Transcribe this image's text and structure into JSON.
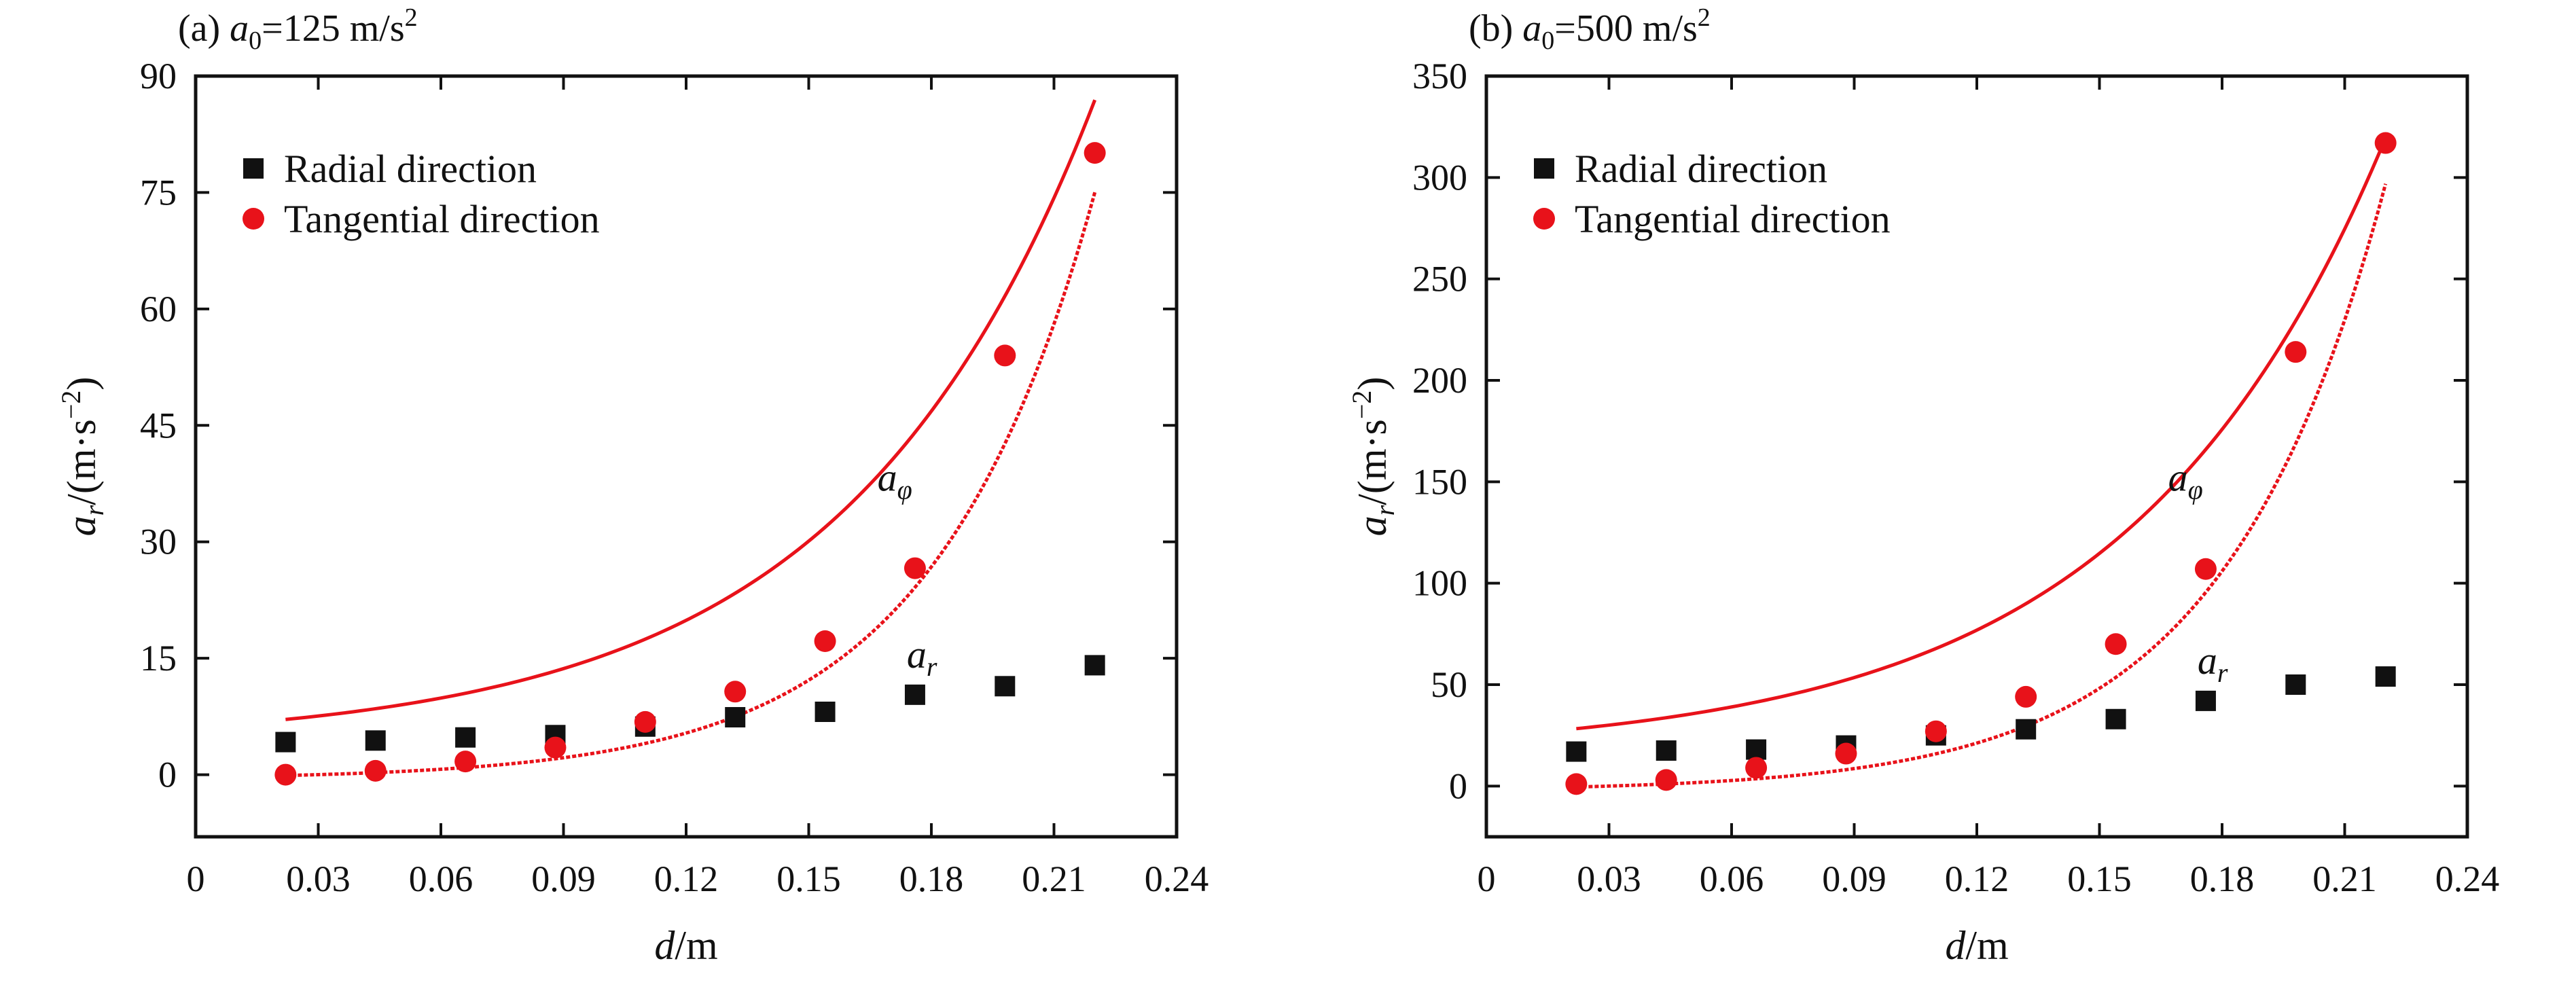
{
  "chart_data": [
    {
      "type": "scatter",
      "title": "(a)  a0=125 m/s2",
      "title_parts": {
        "prefix": "(a)",
        "var": "a",
        "sub": "0",
        "rest": "=125 m/s",
        "sup": "2"
      },
      "xlabel": "d/m",
      "xlabel_parts": {
        "var": "d",
        "rest": "/m"
      },
      "ylabel": "ar/(m·s−2)",
      "ylabel_parts": {
        "var": "a",
        "sub": "r",
        "unit_start": "/(m·s",
        "sup": "−2",
        "unit_end": ")"
      },
      "xlim": [
        0,
        0.24
      ],
      "ylim": [
        -8,
        90
      ],
      "xticks": [
        0,
        0.03,
        0.06,
        0.09,
        0.12,
        0.15,
        0.18,
        0.21,
        0.24
      ],
      "xtick_labels": [
        "0",
        "0.03",
        "0.06",
        "0.09",
        "0.12",
        "0.15",
        "0.18",
        "0.21",
        "0.24"
      ],
      "yticks": [
        0,
        15,
        30,
        45,
        60,
        75,
        90
      ],
      "ytick_labels": [
        "0",
        "15",
        "30",
        "45",
        "60",
        "75",
        "90"
      ],
      "x": [
        0.022,
        0.044,
        0.066,
        0.088,
        0.11,
        0.132,
        0.154,
        0.176,
        0.198,
        0.22
      ],
      "series": [
        {
          "name": "Radial direction",
          "marker": "square",
          "color": "#111111",
          "line_color": "#e8121a",
          "values": [
            4.2,
            4.4,
            4.8,
            5.1,
            6.2,
            7.4,
            8.1,
            10.3,
            11.4,
            14.1
          ],
          "fit": {
            "a": 3.95,
            "b": 2.2,
            "k": 16.5,
            "style": "solid"
          },
          "label": {
            "var": "a",
            "sub": "r"
          }
        },
        {
          "name": "Tangential direction",
          "marker": "circle",
          "color": "#e8121a",
          "line_color": "#e8121a",
          "values": [
            0.0,
            0.5,
            1.7,
            3.5,
            6.8,
            10.7,
            17.2,
            26.6,
            54.0,
            80.1
          ],
          "fit": {
            "a": -0.6,
            "b": 0.283,
            "k": 25.4,
            "style": "dashed"
          },
          "label": {
            "var": "a",
            "sub": "φ"
          }
        }
      ],
      "legend": "top-left",
      "grid": false
    },
    {
      "type": "scatter",
      "title": "(b)  a0=500 m/s2",
      "title_parts": {
        "prefix": "(b)",
        "var": "a",
        "sub": "0",
        "rest": "=500 m/s",
        "sup": "2"
      },
      "xlabel": "d/m",
      "xlabel_parts": {
        "var": "d",
        "rest": "/m"
      },
      "ylabel": "ar/(m·s−2)",
      "ylabel_parts": {
        "var": "a",
        "sub": "r",
        "unit_start": "/(m·s",
        "sup": "−2",
        "unit_end": ")"
      },
      "xlim": [
        0,
        0.24
      ],
      "ylim": [
        -25,
        350
      ],
      "xticks": [
        0,
        0.03,
        0.06,
        0.09,
        0.12,
        0.15,
        0.18,
        0.21,
        0.24
      ],
      "xtick_labels": [
        "0",
        "0.03",
        "0.06",
        "0.09",
        "0.12",
        "0.15",
        "0.18",
        "0.21",
        "0.24"
      ],
      "yticks": [
        0,
        50,
        100,
        150,
        200,
        250,
        300,
        350
      ],
      "ytick_labels": [
        "0",
        "50",
        "100",
        "150",
        "200",
        "250",
        "300",
        "350"
      ],
      "x": [
        0.022,
        0.044,
        0.066,
        0.088,
        0.11,
        0.132,
        0.154,
        0.176,
        0.198,
        0.22
      ],
      "series": [
        {
          "name": "Radial direction",
          "marker": "square",
          "color": "#111111",
          "line_color": "#e8121a",
          "values": [
            17,
            17.5,
            18,
            20,
            25,
            28,
            33,
            42,
            50,
            54
          ],
          "fit": {
            "a": 15.5,
            "b": 9.0,
            "k": 16.0,
            "style": "solid"
          },
          "label": {
            "var": "a",
            "sub": "r"
          }
        },
        {
          "name": "Tangential direction",
          "marker": "circle",
          "color": "#e8121a",
          "line_color": "#e8121a",
          "values": [
            1,
            3,
            9,
            16,
            27,
            44,
            70,
            107,
            214,
            317
          ],
          "fit": {
            "a": -2.4,
            "b": 1.12,
            "k": 25.4,
            "style": "dashed"
          },
          "label": {
            "var": "a",
            "sub": "φ"
          }
        }
      ],
      "legend": "top-left",
      "grid": false
    }
  ]
}
